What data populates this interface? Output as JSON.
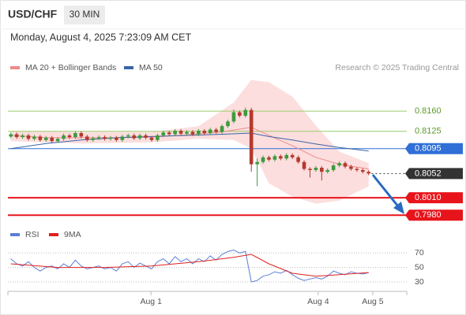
{
  "header": {
    "symbol": "USD/CHF",
    "interval": "30 MIN",
    "timestamp": "Monday, August 4, 2025 7:23:09 AM CET",
    "copyright": "Research © 2025 Trading Central"
  },
  "chart_data": [
    {
      "type": "candlestick",
      "xlim": [
        -0.5,
        67.5
      ],
      "ylim": [
        0.7968,
        0.8216
      ],
      "up_color": "#3d9a3d",
      "down_color": "#b33a2e",
      "open": [
        0.8116,
        0.812,
        0.8115,
        0.8118,
        0.8112,
        0.8116,
        0.811,
        0.8114,
        0.8108,
        0.8112,
        0.8118,
        0.8115,
        0.8122,
        0.8116,
        0.811,
        0.8113,
        0.8115,
        0.8112,
        0.8114,
        0.811,
        0.8116,
        0.8118,
        0.8113,
        0.8118,
        0.8114,
        0.811,
        0.8118,
        0.8123,
        0.812,
        0.8126,
        0.8121,
        0.8124,
        0.812,
        0.8126,
        0.8122,
        0.8128,
        0.8124,
        0.8134,
        0.8142,
        0.8158,
        0.8152,
        0.8162,
        0.8068,
        0.8072,
        0.808,
        0.8076,
        0.8082,
        0.8078,
        0.8084,
        0.808,
        0.8072,
        0.806,
        0.8058,
        0.8062,
        0.8055,
        0.8058,
        0.8066,
        0.807,
        0.8064,
        0.806,
        0.8058,
        0.8055
      ],
      "high": [
        0.8123,
        0.8123,
        0.8121,
        0.8121,
        0.8119,
        0.8119,
        0.8117,
        0.8117,
        0.8115,
        0.8121,
        0.8121,
        0.8125,
        0.8125,
        0.8119,
        0.8116,
        0.8118,
        0.8118,
        0.8117,
        0.8117,
        0.8119,
        0.8121,
        0.8121,
        0.8121,
        0.8121,
        0.8117,
        0.8121,
        0.8126,
        0.8126,
        0.8129,
        0.8129,
        0.8127,
        0.8127,
        0.8129,
        0.8129,
        0.8131,
        0.8131,
        0.8137,
        0.8145,
        0.8163,
        0.8161,
        0.8166,
        0.8166,
        0.8078,
        0.8083,
        0.8083,
        0.8085,
        0.8085,
        0.8087,
        0.8087,
        0.8083,
        0.8075,
        0.8063,
        0.8065,
        0.8065,
        0.8061,
        0.8069,
        0.8073,
        0.8073,
        0.8067,
        0.8063,
        0.8061,
        0.8058
      ],
      "low": [
        0.8113,
        0.8112,
        0.8112,
        0.8109,
        0.8109,
        0.8107,
        0.8107,
        0.8105,
        0.8105,
        0.8109,
        0.8112,
        0.8112,
        0.8113,
        0.8107,
        0.8107,
        0.811,
        0.8109,
        0.8109,
        0.8107,
        0.8107,
        0.8113,
        0.811,
        0.811,
        0.8111,
        0.8107,
        0.8107,
        0.8115,
        0.8117,
        0.8117,
        0.8118,
        0.8118,
        0.8117,
        0.8117,
        0.8119,
        0.8119,
        0.8121,
        0.8121,
        0.8131,
        0.8139,
        0.8149,
        0.8149,
        0.8055,
        0.803,
        0.8069,
        0.8073,
        0.8073,
        0.8075,
        0.8075,
        0.8077,
        0.8069,
        0.8057,
        0.8045,
        0.8055,
        0.804,
        0.8052,
        0.8055,
        0.8063,
        0.8061,
        0.8057,
        0.8055,
        0.8052,
        0.8049
      ],
      "close": [
        0.812,
        0.8115,
        0.8118,
        0.8112,
        0.8116,
        0.811,
        0.8114,
        0.8108,
        0.8112,
        0.8118,
        0.8115,
        0.8122,
        0.8116,
        0.811,
        0.8113,
        0.8115,
        0.8112,
        0.8114,
        0.811,
        0.8116,
        0.8118,
        0.8113,
        0.8118,
        0.8114,
        0.811,
        0.8118,
        0.8123,
        0.812,
        0.8126,
        0.8121,
        0.8124,
        0.812,
        0.8126,
        0.8122,
        0.8128,
        0.8124,
        0.8134,
        0.8142,
        0.8158,
        0.8152,
        0.8162,
        0.8068,
        0.8072,
        0.808,
        0.8076,
        0.8082,
        0.8078,
        0.8084,
        0.808,
        0.8072,
        0.806,
        0.8058,
        0.8062,
        0.8055,
        0.8058,
        0.8066,
        0.807,
        0.8064,
        0.806,
        0.8058,
        0.8055,
        0.8052
      ],
      "band": {
        "color": "#fcdede",
        "x": [
          0,
          12,
          24,
          32,
          38,
          41,
          44,
          48,
          52,
          56,
          61
        ],
        "upper": [
          0.8126,
          0.8124,
          0.8124,
          0.8134,
          0.8175,
          0.8214,
          0.821,
          0.8185,
          0.8135,
          0.809,
          0.807
        ],
        "lower": [
          0.8108,
          0.8104,
          0.8106,
          0.8112,
          0.811,
          0.8095,
          0.8035,
          0.8012,
          0.8,
          0.8005,
          0.803
        ]
      },
      "series": [
        {
          "name": "MA 20 + Bollinger Bands",
          "color": "#f08a8a",
          "x": [
            0,
            6,
            12,
            18,
            24,
            30,
            36,
            41,
            44,
            48,
            52,
            56,
            61
          ],
          "values": [
            0.8118,
            0.8114,
            0.8114,
            0.8114,
            0.8115,
            0.8119,
            0.8124,
            0.8132,
            0.8118,
            0.81,
            0.808,
            0.8068,
            0.806
          ]
        },
        {
          "name": "MA 50",
          "color": "#3a64a8",
          "x": [
            0,
            6,
            12,
            18,
            24,
            30,
            36,
            41,
            44,
            48,
            52,
            56,
            61
          ],
          "values": [
            0.8095,
            0.8104,
            0.811,
            0.8114,
            0.8116,
            0.8118,
            0.812,
            0.8122,
            0.8116,
            0.811,
            0.8103,
            0.8097,
            0.8091
          ]
        }
      ],
      "levels": [
        {
          "value": 0.816,
          "label": "0.8160",
          "color": "#9acd6a",
          "text_color": "#5a9a2a",
          "boxed": false,
          "width": 1,
          "style": "solid"
        },
        {
          "value": 0.8125,
          "label": "0.8125",
          "color": "#9acd6a",
          "text_color": "#5a9a2a",
          "boxed": false,
          "width": 1,
          "style": "solid"
        },
        {
          "value": 0.8095,
          "label": "0.8095",
          "color": "#2f6fd6",
          "text_color": "#ffffff",
          "boxed": true,
          "width": 1,
          "style": "solid"
        },
        {
          "value": 0.8052,
          "label": "0.8052",
          "color": "#333333",
          "text_color": "#ffffff",
          "boxed": true,
          "width": 1,
          "style": "dotted"
        },
        {
          "value": 0.801,
          "label": "0.8010",
          "color": "#e8141b",
          "text_color": "#ffffff",
          "boxed": true,
          "width": 2,
          "style": "solid"
        },
        {
          "value": 0.798,
          "label": "0.7980",
          "color": "#e8141b",
          "text_color": "#ffffff",
          "boxed": true,
          "width": 2,
          "style": "solid"
        }
      ]
    },
    {
      "type": "line",
      "xlim": [
        -0.5,
        67.5
      ],
      "ylim": [
        17,
        80
      ],
      "yticks": [
        30,
        50,
        70
      ],
      "grid": true,
      "xticks": [
        {
          "value": 23.9,
          "label": "Aug 1"
        },
        {
          "value": 52.4,
          "label": "Aug 4"
        },
        {
          "value": 61.7,
          "label": "Aug 5"
        }
      ],
      "series": [
        {
          "name": "RSI",
          "color": "#5b7fd6",
          "values": [
            62,
            55,
            52,
            58,
            50,
            45,
            50,
            52,
            48,
            55,
            50,
            60,
            52,
            48,
            50,
            52,
            48,
            50,
            45,
            55,
            58,
            50,
            56,
            52,
            48,
            58,
            62,
            55,
            65,
            58,
            62,
            55,
            62,
            58,
            66,
            60,
            68,
            72,
            74,
            70,
            72,
            30,
            32,
            38,
            40,
            44,
            42,
            46,
            40,
            35,
            32,
            34,
            36,
            34,
            38,
            45,
            42,
            40,
            44,
            42,
            41,
            43
          ]
        },
        {
          "name": "9MA",
          "color": "#e0201f",
          "x": [
            0,
            8,
            16,
            24,
            32,
            38,
            41,
            44,
            48,
            52,
            56,
            61
          ],
          "values": [
            55,
            50,
            50,
            52,
            58,
            64,
            68,
            55,
            42,
            38,
            40,
            43
          ]
        }
      ]
    }
  ]
}
